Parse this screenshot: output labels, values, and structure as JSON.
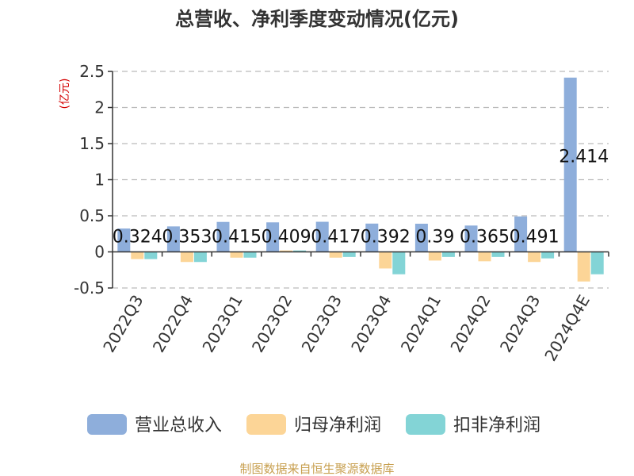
{
  "chart_data": {
    "type": "bar",
    "title": "总营收、净利季度变动情况(亿元)",
    "unit": "(亿元)",
    "categories": [
      "2022Q3",
      "2022Q4",
      "2023Q1",
      "2023Q2",
      "2023Q3",
      "2023Q4",
      "2024Q1",
      "2024Q2",
      "2024Q3",
      "2024Q4E"
    ],
    "series": [
      {
        "name": "营业总收入",
        "color": "#8eaedb",
        "values": [
          0.324,
          0.353,
          0.415,
          0.409,
          0.417,
          0.392,
          0.39,
          0.365,
          0.491,
          2.414
        ]
      },
      {
        "name": "归母净利润",
        "color": "#fcd597",
        "values": [
          -0.1,
          -0.14,
          -0.08,
          0.02,
          -0.08,
          -0.23,
          -0.12,
          -0.13,
          -0.14,
          -0.41
        ]
      },
      {
        "name": "扣非净利润",
        "color": "#83d4d6",
        "values": [
          -0.1,
          -0.14,
          -0.08,
          0.02,
          -0.07,
          -0.31,
          -0.07,
          -0.07,
          -0.09,
          -0.31
        ]
      }
    ],
    "data_labels": [
      "0.324",
      "0.353",
      "0.415",
      "0.409",
      "0.417",
      "0.392",
      "0.39",
      "0.365",
      "0.491",
      "2.414"
    ],
    "yticks": [
      "2.5",
      "2",
      "1.5",
      "1",
      "0.5",
      "0",
      "-0.5"
    ],
    "ylim": [
      -0.5,
      2.5
    ],
    "grid": true,
    "legend_position": "bottom"
  },
  "source": "制图数据来自恒生聚源数据库"
}
